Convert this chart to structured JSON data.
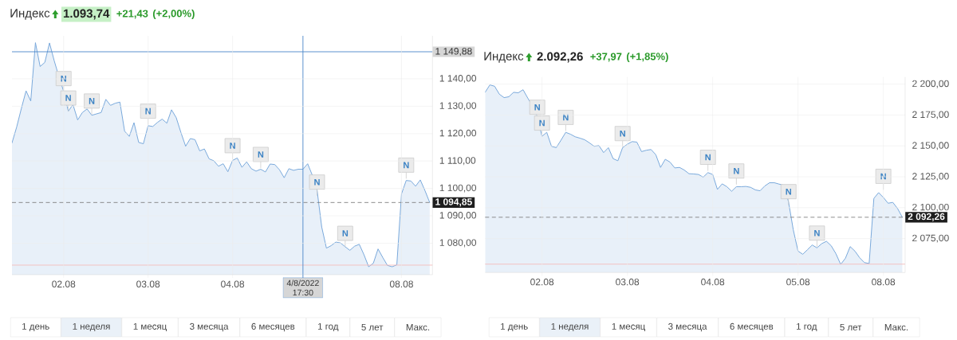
{
  "chart_data": [
    {
      "type": "area",
      "title": "Индекс",
      "annotations": [
        "1.093,74",
        "+21,43",
        "(+2,00%)",
        "1 день",
        "1 неделя",
        "1 месяц",
        "3 месяца",
        "6 месяцев",
        "1 год",
        "5 лет",
        "Макс."
      ],
      "categories": [
        null,
        null,
        null,
        null,
        null,
        null,
        null,
        null,
        null,
        null,
        null,
        "02.08",
        null,
        null,
        null,
        null,
        null,
        null,
        null,
        null,
        null,
        null,
        null,
        null,
        null,
        null,
        null,
        null,
        null,
        "03.08",
        null,
        null,
        null,
        null,
        null,
        null,
        null,
        null,
        null,
        null,
        null,
        null,
        null,
        null,
        null,
        null,
        null,
        "04.08",
        null,
        null,
        null,
        null,
        null,
        null,
        null,
        null,
        null,
        null,
        null,
        null,
        null,
        null,
        "4/8/2022 17:30",
        null,
        null,
        null,
        null,
        null,
        null,
        null,
        null,
        null,
        null,
        null,
        null,
        null,
        null,
        null,
        null,
        null,
        null,
        null,
        null,
        "08.08",
        null,
        null,
        null,
        null,
        null,
        null
      ],
      "series": [
        {
          "color": "#79a9db",
          "values": [
            1116.6,
            1122.4,
            1129.2,
            1135.6,
            1131.9,
            1153.2,
            1144.5,
            1146.0,
            1153.1,
            1146.6,
            1140.8,
            1135.5,
            1128.2,
            1130.6,
            1125.0,
            1127.7,
            1129.0,
            1126.7,
            1127.2,
            1127.7,
            1132.5,
            1130.3,
            1131.1,
            1131.5,
            1120.9,
            1119.0,
            1124.0,
            1116.8,
            1116.3,
            1122.9,
            1122.6,
            1124.1,
            1125.3,
            1123.8,
            1128.7,
            1125.8,
            1120.4,
            1115.4,
            1118.2,
            1117.8,
            1113.7,
            1114.4,
            1110.8,
            1110.1,
            1108.1,
            1109.0,
            1106.1,
            1110.2,
            1111.1,
            1107.7,
            1109.7,
            1107.2,
            1106.3,
            1107.0,
            1106.0,
            1108.9,
            1108.7,
            1106.8,
            1103.9,
            1107.2,
            1106.6,
            1107.0,
            1107.0,
            1109.0,
            1104.8,
            1099.5,
            1085.9,
            1078.2,
            1079.1,
            1080.4,
            1080.1,
            1078.7,
            1077.4,
            1078.9,
            1079.6,
            1075.8,
            1071.4,
            1072.7,
            1077.9,
            1074.8,
            1071.9,
            1071.4,
            1072.1,
            1098.0,
            1102.9,
            1102.7,
            1100.8,
            1103.1,
            1099.2,
            1094.9
          ]
        },
        {
          "type": "scatter",
          "marker": "square",
          "color": "#ebebeb",
          "values": [
            null,
            null,
            null,
            null,
            null,
            null,
            null,
            null,
            null,
            null,
            null,
            1140.1,
            1133.0,
            null,
            null,
            null,
            null,
            1131.9,
            null,
            null,
            null,
            null,
            null,
            null,
            null,
            null,
            null,
            null,
            null,
            1128.2,
            null,
            null,
            null,
            null,
            null,
            null,
            null,
            null,
            null,
            null,
            null,
            null,
            null,
            null,
            null,
            null,
            null,
            1115.6,
            null,
            null,
            null,
            null,
            null,
            1112.4,
            null,
            null,
            null,
            null,
            null,
            null,
            null,
            null,
            null,
            null,
            null,
            1102.3,
            null,
            null,
            null,
            null,
            null,
            1083.6,
            null,
            null,
            null,
            null,
            null,
            null,
            null,
            null,
            null,
            null,
            null,
            null,
            1108.5,
            null,
            null,
            null,
            null,
            null
          ],
          "value_labels": [
            null,
            null,
            null,
            null,
            null,
            null,
            null,
            null,
            null,
            null,
            null,
            "N",
            "N",
            null,
            null,
            null,
            null,
            "N",
            null,
            null,
            null,
            null,
            null,
            null,
            null,
            null,
            null,
            null,
            null,
            "N",
            null,
            null,
            null,
            null,
            null,
            null,
            null,
            null,
            null,
            null,
            null,
            null,
            null,
            null,
            null,
            null,
            null,
            "N",
            null,
            null,
            null,
            null,
            null,
            "N",
            null,
            null,
            null,
            null,
            null,
            null,
            null,
            null,
            null,
            null,
            null,
            "N",
            null,
            null,
            null,
            null,
            null,
            "N",
            null,
            null,
            null,
            null,
            null,
            null,
            null,
            null,
            null,
            null,
            null,
            null,
            "N",
            null,
            null,
            null,
            null,
            null
          ]
        }
      ],
      "ylim": [
        1068.5,
        1155.7
      ],
      "yticks": [
        {
          "value": 1080,
          "label": "1 080,00"
        },
        {
          "value": 1090,
          "label": "1 090,00"
        },
        {
          "value": 1100,
          "label": "1 100,00"
        },
        {
          "value": 1110,
          "label": "1 110,00"
        },
        {
          "value": 1120,
          "label": "1 120,00"
        },
        {
          "value": 1130,
          "label": "1 130,00"
        },
        {
          "value": 1140,
          "label": "1 140,00"
        }
      ],
      "grid": true,
      "ref_lines": [
        {
          "axis": "y",
          "value": 1072,
          "color": "#f4bcbc",
          "line_style": "solid"
        },
        {
          "axis": "y",
          "value": 1094.85,
          "label": "1 094,85",
          "color": "#808080",
          "line_style": "dashed"
        },
        {
          "axis": "y",
          "value": 1149.88,
          "label": "1 149,88",
          "color": "#4a86c8",
          "line_style": "solid"
        },
        {
          "axis": "x",
          "value": "4/8/2022 17:30",
          "color": "#4a86c8",
          "line_style": "solid"
        }
      ]
    },
    {
      "type": "area",
      "title": "Индекс",
      "annotations": [
        "2.092,26",
        "+37,97",
        "(+1,85%)",
        "1 день",
        "1 неделя",
        "1 месяц",
        "3 месяца",
        "6 месяцев",
        "1 год",
        "5 лет",
        "Макс."
      ],
      "categories": [
        null,
        null,
        null,
        null,
        null,
        null,
        null,
        null,
        null,
        null,
        null,
        null,
        "02.08",
        null,
        null,
        null,
        null,
        null,
        null,
        null,
        null,
        null,
        null,
        null,
        null,
        null,
        null,
        null,
        null,
        null,
        "03.08",
        null,
        null,
        null,
        null,
        null,
        null,
        null,
        null,
        null,
        null,
        null,
        null,
        null,
        null,
        null,
        null,
        null,
        "04.08",
        null,
        null,
        null,
        null,
        null,
        null,
        null,
        null,
        null,
        null,
        null,
        null,
        null,
        null,
        null,
        null,
        null,
        "05.08",
        null,
        null,
        null,
        null,
        null,
        null,
        null,
        null,
        null,
        null,
        null,
        null,
        null,
        null,
        null,
        null,
        null,
        "08.08",
        null,
        null,
        null,
        null
      ],
      "series": [
        {
          "color": "#79a9db",
          "values": [
            2193.4,
            2199.4,
            2198.3,
            2191.9,
            2189.1,
            2189.8,
            2193.4,
            2193.0,
            2195.5,
            2188.7,
            2182.3,
            2173.8,
            2157.8,
            2161.0,
            2149.7,
            2148.6,
            2154.6,
            2161.0,
            2159.5,
            2157.4,
            2156.3,
            2155.0,
            2152.5,
            2149.7,
            2150.3,
            2144.6,
            2148.6,
            2139.7,
            2138.0,
            2148.6,
            2151.4,
            2153.5,
            2153.1,
            2145.4,
            2146.5,
            2147.1,
            2142.9,
            2132.6,
            2139.2,
            2136.9,
            2132.2,
            2132.6,
            2130.5,
            2127.5,
            2127.3,
            2126.9,
            2124.7,
            2128.4,
            2126.9,
            2114.8,
            2119.3,
            2117.0,
            2113.3,
            2117.0,
            2117.0,
            2117.2,
            2116.5,
            2114.4,
            2113.7,
            2117.6,
            2120.2,
            2120.2,
            2119.1,
            2118.2,
            2104.7,
            2082.1,
            2064.9,
            2062.3,
            2066.0,
            2069.8,
            2067.5,
            2070.9,
            2072.8,
            2069.2,
            2062.7,
            2054.1,
            2059.1,
            2068.5,
            2064.9,
            2059.5,
            2055.6,
            2054.8,
            2107.5,
            2112.2,
            2108.3,
            2103.6,
            2104.3,
            2099.3,
            2092.3
          ]
        },
        {
          "type": "scatter",
          "marker": "square",
          "color": "#ebebeb",
          "values": [
            null,
            null,
            null,
            null,
            null,
            null,
            null,
            null,
            null,
            null,
            null,
            2181.3,
            2168.5,
            null,
            null,
            null,
            null,
            2173.1,
            null,
            null,
            null,
            null,
            null,
            null,
            null,
            null,
            null,
            null,
            null,
            2160.0,
            null,
            null,
            null,
            null,
            null,
            null,
            null,
            null,
            null,
            null,
            null,
            null,
            null,
            null,
            null,
            null,
            null,
            2140.8,
            null,
            null,
            null,
            null,
            null,
            2129.7,
            null,
            null,
            null,
            null,
            null,
            null,
            null,
            null,
            null,
            null,
            2113.0,
            null,
            null,
            null,
            null,
            null,
            2079.4,
            null,
            null,
            null,
            null,
            null,
            null,
            null,
            null,
            null,
            null,
            null,
            null,
            null,
            2125.4,
            null,
            null,
            null,
            null
          ],
          "value_labels": [
            null,
            null,
            null,
            null,
            null,
            null,
            null,
            null,
            null,
            null,
            null,
            "N",
            "N",
            null,
            null,
            null,
            null,
            "N",
            null,
            null,
            null,
            null,
            null,
            null,
            null,
            null,
            null,
            null,
            null,
            "N",
            null,
            null,
            null,
            null,
            null,
            null,
            null,
            null,
            null,
            null,
            null,
            null,
            null,
            null,
            null,
            null,
            null,
            "N",
            null,
            null,
            null,
            null,
            null,
            "N",
            null,
            null,
            null,
            null,
            null,
            null,
            null,
            null,
            null,
            null,
            "N",
            null,
            null,
            null,
            null,
            null,
            "N",
            null,
            null,
            null,
            null,
            null,
            null,
            null,
            null,
            null,
            null,
            null,
            null,
            null,
            "N",
            null,
            null,
            null,
            null
          ]
        }
      ],
      "ylim": [
        2047.5,
        2205.8
      ],
      "yticks": [
        {
          "value": 2075,
          "label": "2 075,00"
        },
        {
          "value": 2100,
          "label": "2 100,00"
        },
        {
          "value": 2125,
          "label": "2 125,00"
        },
        {
          "value": 2150,
          "label": "2 150,00"
        },
        {
          "value": 2175,
          "label": "2 175,00"
        },
        {
          "value": 2200,
          "label": "2 200,00"
        }
      ],
      "grid": true,
      "ref_lines": [
        {
          "axis": "y",
          "value": 2054.3,
          "color": "#f4bcbc",
          "line_style": "solid"
        },
        {
          "axis": "y",
          "value": 2092.26,
          "label": "2 092,26",
          "color": "#808080",
          "line_style": "dashed"
        }
      ]
    }
  ]
}
